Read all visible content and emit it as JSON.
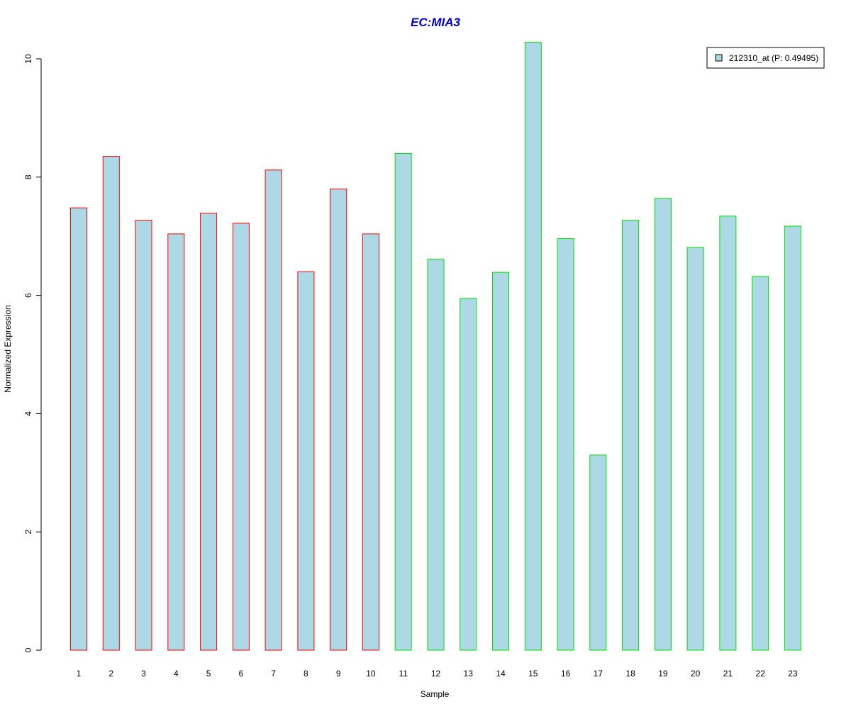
{
  "chart_data": {
    "type": "bar",
    "title": "EC:MIA3",
    "xlabel": "Sample",
    "ylabel": "Normalized Expression",
    "ylim": [
      0,
      10
    ],
    "yticks": [
      0,
      2,
      4,
      6,
      8,
      10
    ],
    "categories": [
      "1",
      "2",
      "3",
      "4",
      "5",
      "6",
      "7",
      "8",
      "9",
      "10",
      "11",
      "12",
      "13",
      "14",
      "15",
      "16",
      "17",
      "18",
      "19",
      "20",
      "21",
      "22",
      "23"
    ],
    "series": [
      {
        "name": "212310_at (P: 0.49495)",
        "values": [
          7.48,
          8.35,
          7.27,
          7.04,
          7.39,
          7.22,
          8.12,
          6.4,
          7.8,
          7.04,
          8.4,
          6.61,
          5.95,
          6.39,
          10.28,
          6.96,
          3.3,
          7.27,
          7.64,
          6.81,
          7.34,
          6.32,
          7.17
        ]
      }
    ],
    "groups": [
      "red",
      "red",
      "red",
      "red",
      "red",
      "red",
      "red",
      "red",
      "red",
      "red",
      "green",
      "green",
      "green",
      "green",
      "green",
      "green",
      "green",
      "green",
      "green",
      "green",
      "green",
      "green",
      "green"
    ],
    "grid": false,
    "legend": {
      "position": "top-right",
      "label": "212310_at (P: 0.49495)"
    }
  },
  "colors": {
    "title": "#0000CC",
    "bar_fill": "#ADD8E6",
    "group_red": "#FF0000",
    "group_green": "#00DD00",
    "axis": "#000000"
  }
}
